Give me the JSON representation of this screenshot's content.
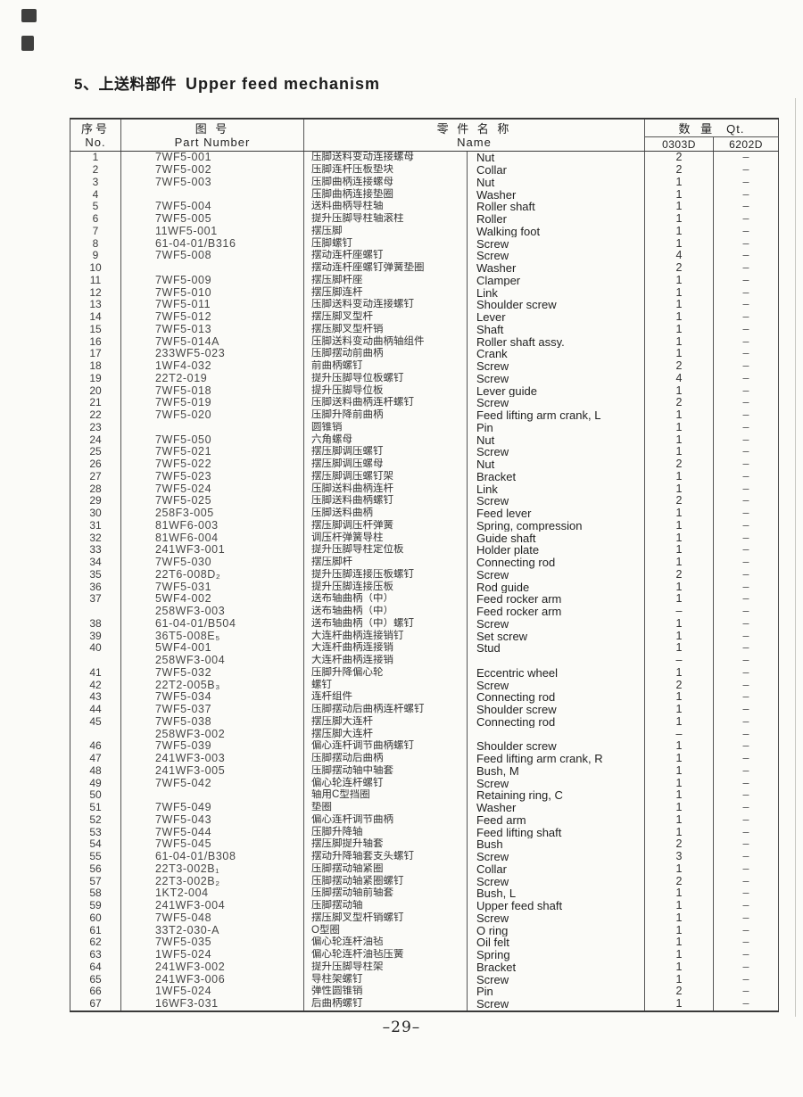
{
  "page": {
    "title_cn": "5、上送料部件",
    "title_en": "Upper feed mechanism",
    "page_number": "–29–"
  },
  "table": {
    "headers": {
      "no_cn": "序号",
      "no_en": "No.",
      "part_cn": "图  号",
      "part_en": "Part Number",
      "name_cn": "零 件 名 称",
      "name_en": "Name",
      "qty_cn": "数 量",
      "qty_en": "Qt.",
      "qty_col1": "0303D",
      "qty_col2": "6202D"
    },
    "rows": [
      {
        "no": "1",
        "part": "7WF5-001",
        "cn": "压脚送料变动连接螺母",
        "en": "Nut",
        "q1": "2",
        "q2": "–"
      },
      {
        "no": "2",
        "part": "7WF5-002",
        "cn": "压脚连杆压板垫块",
        "en": "Collar",
        "q1": "2",
        "q2": "–"
      },
      {
        "no": "3",
        "part": "7WF5-003",
        "cn": "压脚曲柄连接螺母",
        "en": "Nut",
        "q1": "1",
        "q2": "–"
      },
      {
        "no": "4",
        "part": "",
        "cn": "压脚曲柄连接垫圈",
        "en": "Washer",
        "q1": "1",
        "q2": "–"
      },
      {
        "no": "5",
        "part": "7WF5-004",
        "cn": "送料曲柄导柱轴",
        "en": "Roller shaft",
        "q1": "1",
        "q2": "–"
      },
      {
        "no": "6",
        "part": "7WF5-005",
        "cn": "提升压脚导柱轴滚柱",
        "en": "Roller",
        "q1": "1",
        "q2": "–"
      },
      {
        "no": "7",
        "part": "11WF5-001",
        "cn": "摆压脚",
        "en": "Walking foot",
        "q1": "1",
        "q2": "–"
      },
      {
        "no": "8",
        "part": "61-04-01/B316",
        "cn": "压脚螺钉",
        "en": "Screw",
        "q1": "1",
        "q2": "–"
      },
      {
        "no": "9",
        "part": "7WF5-008",
        "cn": "摆动连杆座螺钉",
        "en": "Screw",
        "q1": "4",
        "q2": "–"
      },
      {
        "no": "10",
        "part": "",
        "cn": "摆动连杆座螺钉弹簧垫圈",
        "en": "Washer",
        "q1": "2",
        "q2": "–"
      },
      {
        "no": "11",
        "part": "7WF5-009",
        "cn": "摆压脚杆座",
        "en": "Clamper",
        "q1": "1",
        "q2": "–"
      },
      {
        "no": "12",
        "part": "7WF5-010",
        "cn": "摆压脚连杆",
        "en": "Link",
        "q1": "1",
        "q2": "–"
      },
      {
        "no": "13",
        "part": "7WF5-011",
        "cn": "压脚送料变动连接螺钉",
        "en": "Shoulder screw",
        "q1": "1",
        "q2": "–"
      },
      {
        "no": "14",
        "part": "7WF5-012",
        "cn": "摆压脚叉型杆",
        "en": "Lever",
        "q1": "1",
        "q2": "–"
      },
      {
        "no": "15",
        "part": "7WF5-013",
        "cn": "摆压脚叉型杆销",
        "en": "Shaft",
        "q1": "1",
        "q2": "–"
      },
      {
        "no": "16",
        "part": "7WF5-014A",
        "cn": "压脚送料变动曲柄轴组件",
        "en": "Roller shaft assy.",
        "q1": "1",
        "q2": "–"
      },
      {
        "no": "17",
        "part": "233WF5-023",
        "cn": "压脚摆动前曲柄",
        "en": "Crank",
        "q1": "1",
        "q2": "–"
      },
      {
        "no": "18",
        "part": "1WF4-032",
        "cn": "前曲柄螺钉",
        "en": "Screw",
        "q1": "2",
        "q2": "–"
      },
      {
        "no": "19",
        "part": "22T2-019",
        "cn": "提升压脚导位板螺钉",
        "en": "Screw",
        "q1": "4",
        "q2": "–"
      },
      {
        "no": "20",
        "part": "7WF5-018",
        "cn": "提升压脚导位板",
        "en": "Lever guide",
        "q1": "1",
        "q2": "–"
      },
      {
        "no": "21",
        "part": "7WF5-019",
        "cn": "压脚送料曲柄连杆螺钉",
        "en": "Screw",
        "q1": "2",
        "q2": "–"
      },
      {
        "no": "22",
        "part": "7WF5-020",
        "cn": "压脚升降前曲柄",
        "en": "Feed lifting arm crank, L",
        "q1": "1",
        "q2": "–"
      },
      {
        "no": "23",
        "part": "",
        "cn": "圆锥销",
        "en": "Pin",
        "q1": "1",
        "q2": "–"
      },
      {
        "no": "24",
        "part": "7WF5-050",
        "cn": "六角螺母",
        "en": "Nut",
        "q1": "1",
        "q2": "–"
      },
      {
        "no": "25",
        "part": "7WF5-021",
        "cn": "摆压脚调压螺钉",
        "en": "Screw",
        "q1": "1",
        "q2": "–"
      },
      {
        "no": "26",
        "part": "7WF5-022",
        "cn": "摆压脚调压螺母",
        "en": "Nut",
        "q1": "2",
        "q2": "–"
      },
      {
        "no": "27",
        "part": "7WF5-023",
        "cn": "摆压脚调压螺钉架",
        "en": "Bracket",
        "q1": "1",
        "q2": "–"
      },
      {
        "no": "28",
        "part": "7WF5-024",
        "cn": "压脚送料曲柄连杆",
        "en": "Link",
        "q1": "1",
        "q2": "–"
      },
      {
        "no": "29",
        "part": "7WF5-025",
        "cn": "压脚送料曲柄螺钉",
        "en": "Screw",
        "q1": "2",
        "q2": "–"
      },
      {
        "no": "30",
        "part": "258F3-005",
        "cn": "压脚送料曲柄",
        "en": "Feed lever",
        "q1": "1",
        "q2": "–"
      },
      {
        "no": "31",
        "part": "81WF6-003",
        "cn": "摆压脚调压杆弹簧",
        "en": "Spring, compression",
        "q1": "1",
        "q2": "–"
      },
      {
        "no": "32",
        "part": "81WF6-004",
        "cn": "调压杆弹簧导柱",
        "en": "Guide shaft",
        "q1": "1",
        "q2": "–"
      },
      {
        "no": "33",
        "part": "241WF3-001",
        "cn": "提升压脚导柱定位板",
        "en": "Holder plate",
        "q1": "1",
        "q2": "–"
      },
      {
        "no": "34",
        "part": "7WF5-030",
        "cn": "摆压脚杆",
        "en": "Connecting rod",
        "q1": "1",
        "q2": "–"
      },
      {
        "no": "35",
        "part": "22T6-008D₂",
        "cn": "提升压脚连接压板螺钉",
        "en": "Screw",
        "q1": "2",
        "q2": "–"
      },
      {
        "no": "36",
        "part": "7WF5-031",
        "cn": "提升压脚连接压板",
        "en": "Rod guide",
        "q1": "1",
        "q2": "–"
      },
      {
        "no": "37",
        "part": "5WF4-002",
        "cn": "送布轴曲柄（中）",
        "en": "Feed rocker arm",
        "q1": "1",
        "q2": "–"
      },
      {
        "no": "",
        "part": "258WF3-003",
        "cn": "送布轴曲柄（中）",
        "en": "Feed rocker arm",
        "q1": "–",
        "q2": "–"
      },
      {
        "no": "38",
        "part": "61-04-01/B504",
        "cn": "送布轴曲柄（中）螺钉",
        "en": "Screw",
        "q1": "1",
        "q2": "–"
      },
      {
        "no": "39",
        "part": "36T5-008E₅",
        "cn": "大连杆曲柄连接销钉",
        "en": "Set screw",
        "q1": "1",
        "q2": "–"
      },
      {
        "no": "40",
        "part": "5WF4-001",
        "cn": "大连杆曲柄连接销",
        "en": "Stud",
        "q1": "1",
        "q2": "–"
      },
      {
        "no": "",
        "part": "258WF3-004",
        "cn": "大连杆曲柄连接销",
        "en": "",
        "q1": "–",
        "q2": "–"
      },
      {
        "no": "41",
        "part": "7WF5-032",
        "cn": "压脚升降偏心轮",
        "en": "Eccentric wheel",
        "q1": "1",
        "q2": "–"
      },
      {
        "no": "42",
        "part": "22T2-005B₃",
        "cn": "螺钉",
        "en": "Screw",
        "q1": "2",
        "q2": "–"
      },
      {
        "no": "43",
        "part": "7WF5-034",
        "cn": "连杆组件",
        "en": "Connecting rod",
        "q1": "1",
        "q2": "–"
      },
      {
        "no": "44",
        "part": "7WF5-037",
        "cn": "压脚摆动后曲柄连杆螺钉",
        "en": "Shoulder screw",
        "q1": "1",
        "q2": "–"
      },
      {
        "no": "45",
        "part": "7WF5-038",
        "cn": "摆压脚大连杆",
        "en": "Connecting rod",
        "q1": "1",
        "q2": "–"
      },
      {
        "no": "",
        "part": "258WF3-002",
        "cn": "摆压脚大连杆",
        "en": "",
        "q1": "–",
        "q2": "–"
      },
      {
        "no": "46",
        "part": "7WF5-039",
        "cn": "偏心连杆调节曲柄螺钉",
        "en": "Shoulder screw",
        "q1": "1",
        "q2": "–"
      },
      {
        "no": "47",
        "part": "241WF3-003",
        "cn": "压脚摆动后曲柄",
        "en": "Feed lifting arm crank, R",
        "q1": "1",
        "q2": "–"
      },
      {
        "no": "48",
        "part": "241WF3-005",
        "cn": "压脚摆动轴中轴套",
        "en": "Bush, M",
        "q1": "1",
        "q2": "–"
      },
      {
        "no": "49",
        "part": "7WF5-042",
        "cn": "偏心轮连杆螺钉",
        "en": "Screw",
        "q1": "1",
        "q2": "–"
      },
      {
        "no": "50",
        "part": "",
        "cn": "轴用C型挡圈",
        "en": "Retaining ring, C",
        "q1": "1",
        "q2": "–"
      },
      {
        "no": "51",
        "part": "7WF5-049",
        "cn": "垫圈",
        "en": "Washer",
        "q1": "1",
        "q2": "–"
      },
      {
        "no": "52",
        "part": "7WF5-043",
        "cn": "偏心连杆调节曲柄",
        "en": "Feed arm",
        "q1": "1",
        "q2": "–"
      },
      {
        "no": "53",
        "part": "7WF5-044",
        "cn": "压脚升降轴",
        "en": "Feed lifting shaft",
        "q1": "1",
        "q2": "–"
      },
      {
        "no": "54",
        "part": "7WF5-045",
        "cn": "摆压脚提升轴套",
        "en": "Bush",
        "q1": "2",
        "q2": "–"
      },
      {
        "no": "55",
        "part": "61-04-01/B308",
        "cn": "摆动升降轴套支头螺钉",
        "en": "Screw",
        "q1": "3",
        "q2": "–"
      },
      {
        "no": "56",
        "part": "22T3-002B₁",
        "cn": "压脚摆动轴紧圈",
        "en": "Collar",
        "q1": "1",
        "q2": "–"
      },
      {
        "no": "57",
        "part": "22T3-002B₂",
        "cn": "压脚摆动轴紧圈螺钉",
        "en": "Screw",
        "q1": "2",
        "q2": "–"
      },
      {
        "no": "58",
        "part": "1KT2-004",
        "cn": "压脚摆动轴前轴套",
        "en": "Bush, L",
        "q1": "1",
        "q2": "–"
      },
      {
        "no": "59",
        "part": "241WF3-004",
        "cn": "压脚摆动轴",
        "en": "Upper feed shaft",
        "q1": "1",
        "q2": "–"
      },
      {
        "no": "60",
        "part": "7WF5-048",
        "cn": "摆压脚叉型杆销螺钉",
        "en": "Screw",
        "q1": "1",
        "q2": "–"
      },
      {
        "no": "61",
        "part": "33T2-030-A",
        "cn": "O型圈",
        "en": "O ring",
        "q1": "1",
        "q2": "–"
      },
      {
        "no": "62",
        "part": "7WF5-035",
        "cn": "偏心轮连杆油毡",
        "en": "Oil felt",
        "q1": "1",
        "q2": "–"
      },
      {
        "no": "63",
        "part": "1WF5-024",
        "cn": "偏心轮连杆油毡压簧",
        "en": "Spring",
        "q1": "1",
        "q2": "–"
      },
      {
        "no": "64",
        "part": "241WF3-002",
        "cn": "提升压脚导柱架",
        "en": "Bracket",
        "q1": "1",
        "q2": "–"
      },
      {
        "no": "65",
        "part": "241WF3-006",
        "cn": "导柱架螺钉",
        "en": "Screw",
        "q1": "1",
        "q2": "–"
      },
      {
        "no": "66",
        "part": "1WF5-024",
        "cn": "弹性圆锥销",
        "en": "Pin",
        "q1": "2",
        "q2": "–"
      },
      {
        "no": "67",
        "part": "16WF3-031",
        "cn": "后曲柄螺钉",
        "en": "Screw",
        "q1": "1",
        "q2": "–"
      }
    ]
  }
}
